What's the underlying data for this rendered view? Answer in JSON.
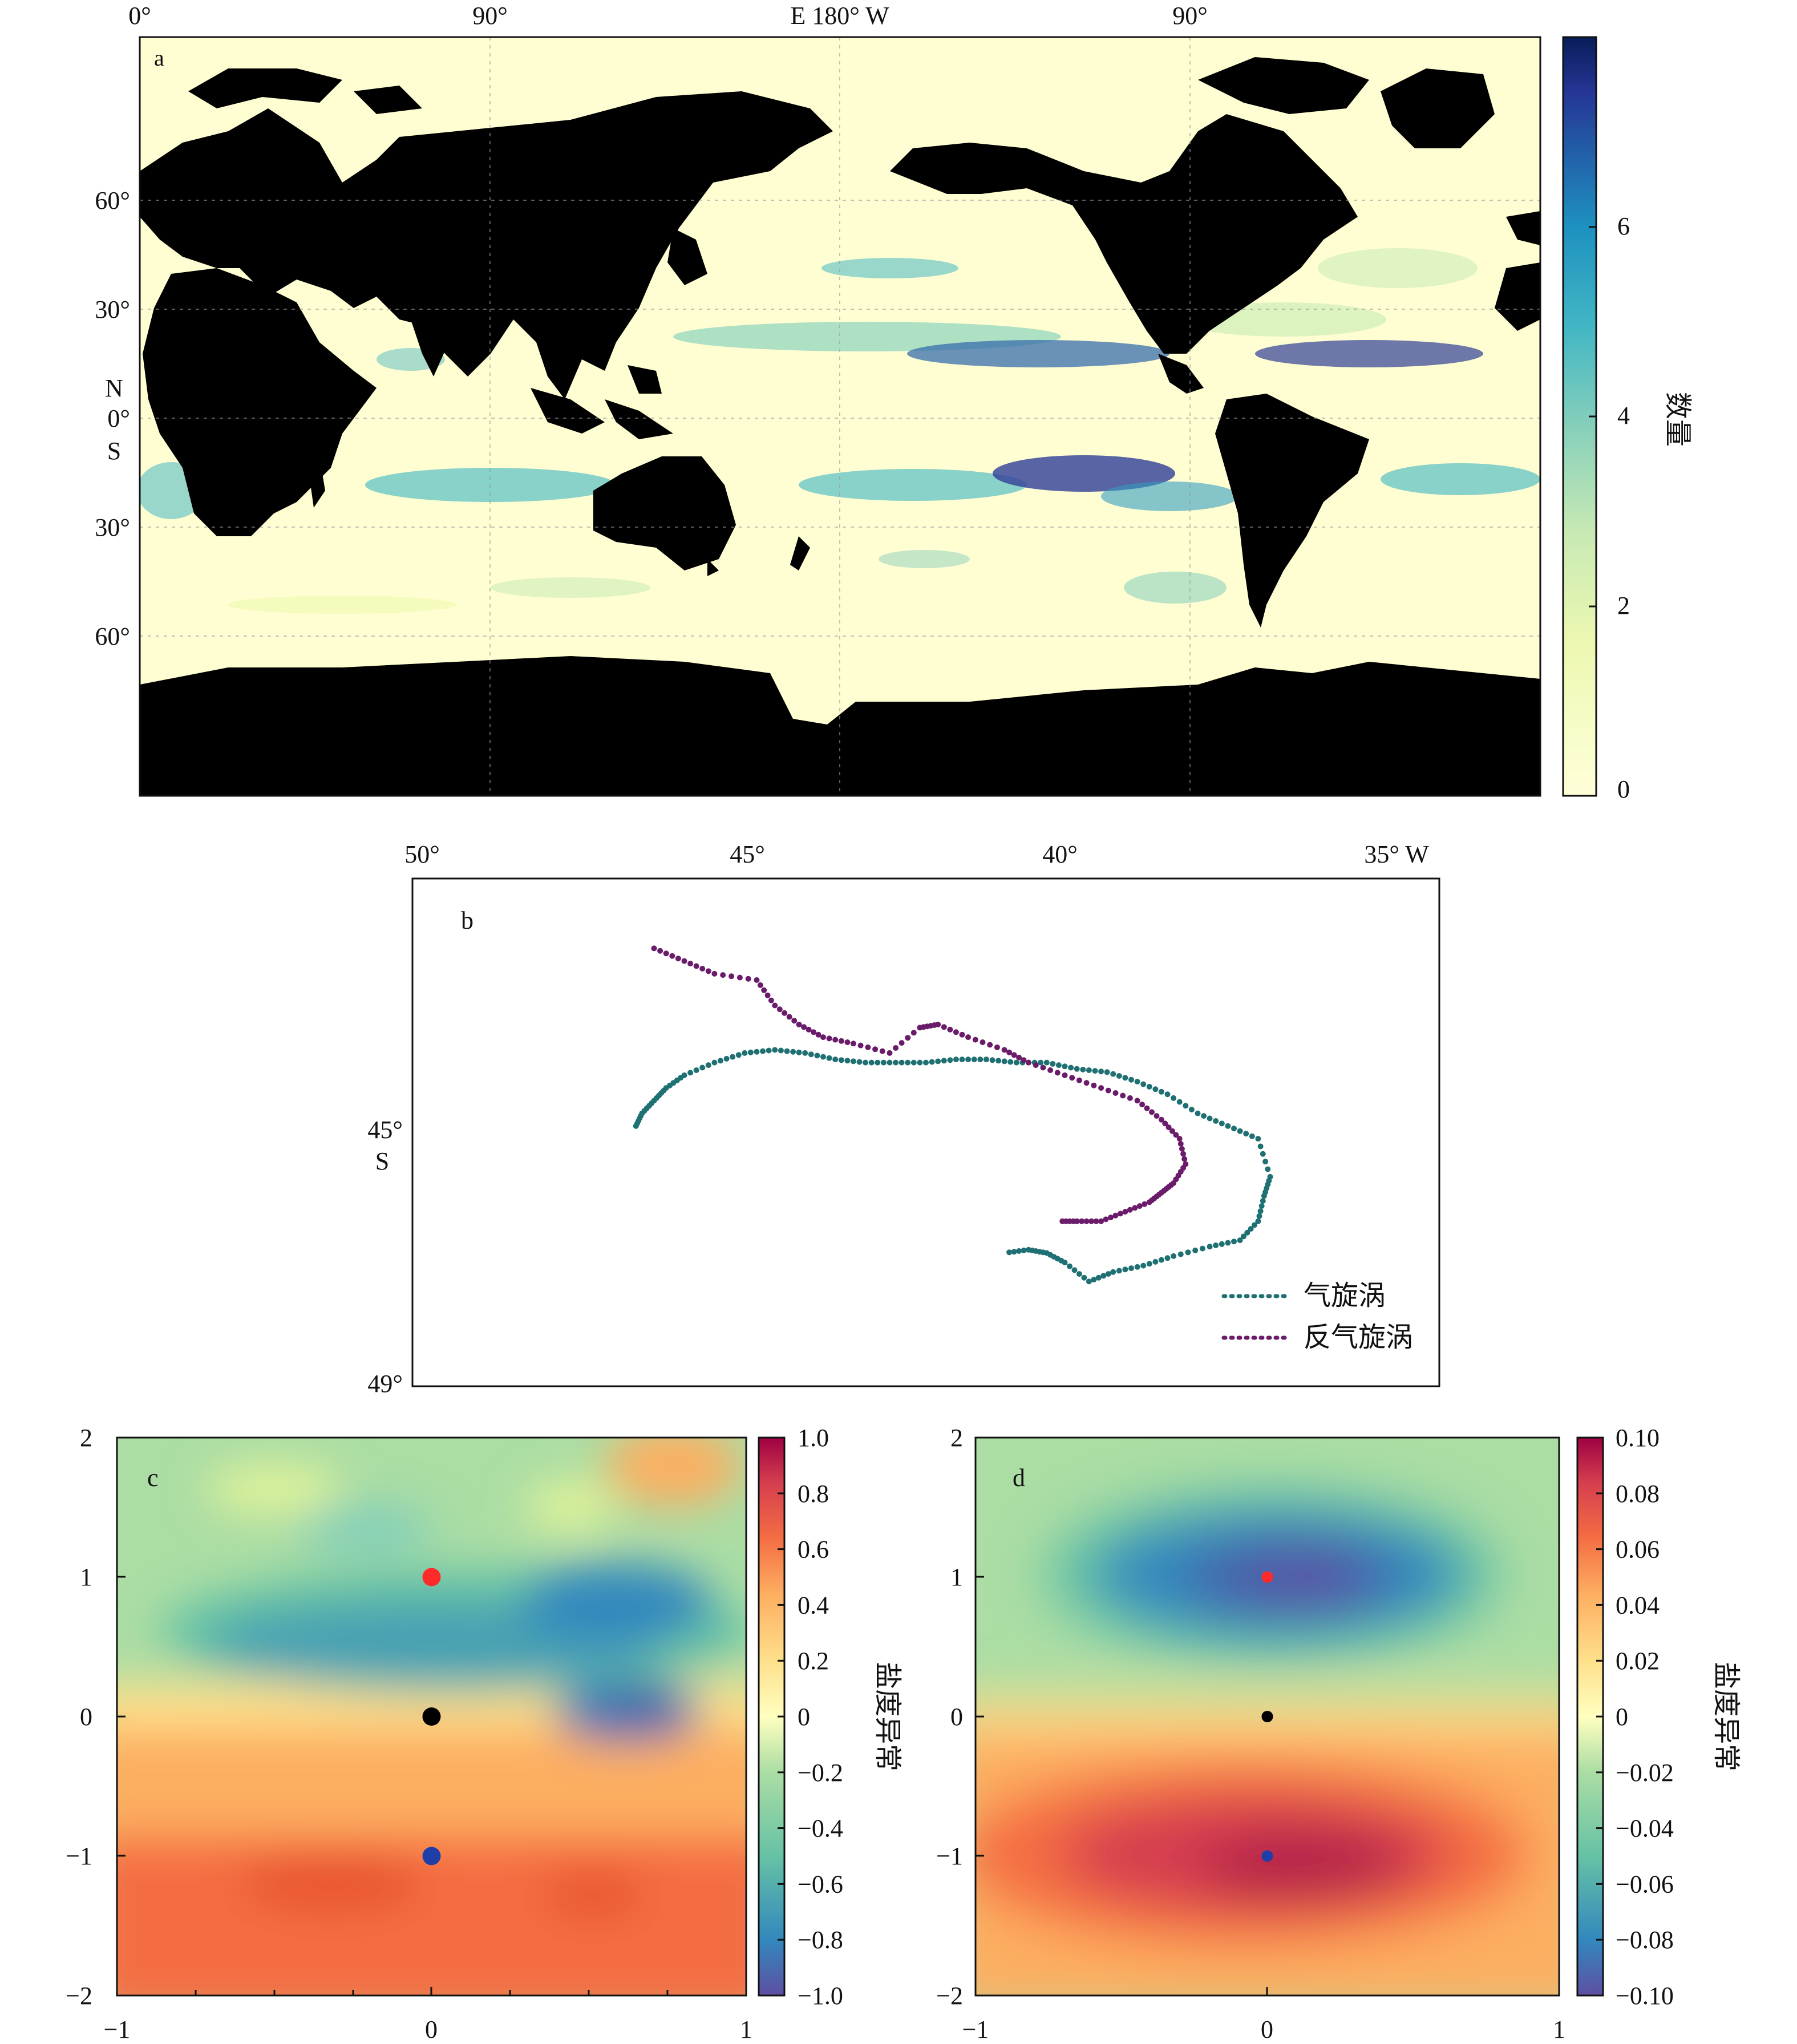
{
  "panel_a": {
    "label": "a",
    "top_ticks": [
      "0°",
      "90°",
      "E 180° W",
      "90°"
    ],
    "left_ticks": [
      "60°",
      "30°",
      "N",
      "0°",
      "S",
      "30°",
      "60°"
    ],
    "colorbar": {
      "label": "数量",
      "ticks": [
        "0",
        "2",
        "4",
        "6"
      ],
      "range": [
        0,
        8
      ]
    },
    "colors": {
      "ocean": "#fffed2",
      "land": "#000000"
    },
    "map_data": {
      "type": "heatmap",
      "description_values": "eddy count per grid cell, 0–8"
    }
  },
  "panel_b": {
    "label": "b",
    "top_ticks": [
      "50°",
      "45°",
      "40°",
      "35° W"
    ],
    "left_ticks": [
      "45°",
      "S",
      "49°"
    ],
    "legend": {
      "cyclone": "气旋涡",
      "anticyclone": "反气旋涡"
    },
    "colors": {
      "cyclone": "#1f7072",
      "anticyclone": "#6a1b6a"
    },
    "chart_data": {
      "type": "scatter",
      "xlim": [
        -51,
        -34
      ],
      "ylim": [
        -49,
        -41
      ],
      "series": [
        {
          "name": "气旋涡",
          "lon": [
            -47.3,
            -47.2,
            -47.0,
            -46.8,
            -46.5,
            -46.0,
            -45.5,
            -45.0,
            -44.5,
            -44.0,
            -43.5,
            -43.0,
            -42.5,
            -42.0,
            -41.5,
            -41.0,
            -40.5,
            -40.0,
            -39.5,
            -39.0,
            -38.5,
            -38.0,
            -37.5,
            -37.0,
            -36.8,
            -36.9,
            -37.0,
            -37.3,
            -37.8,
            -38.4,
            -38.9,
            -39.4,
            -39.8,
            -40.2,
            -40.5,
            -40.8,
            -41.2
          ],
          "lat": [
            -44.9,
            -44.7,
            -44.5,
            -44.3,
            -44.1,
            -43.9,
            -43.75,
            -43.7,
            -43.75,
            -43.85,
            -43.9,
            -43.9,
            -43.9,
            -43.85,
            -43.85,
            -43.9,
            -43.9,
            -44.0,
            -44.05,
            -44.2,
            -44.4,
            -44.7,
            -44.9,
            -45.1,
            -45.7,
            -46.0,
            -46.4,
            -46.7,
            -46.8,
            -46.95,
            -47.1,
            -47.2,
            -47.35,
            -47.05,
            -46.9,
            -46.85,
            -46.9
          ]
        },
        {
          "name": "反气旋涡",
          "lon": [
            -47.0,
            -46.5,
            -46.0,
            -45.3,
            -45.0,
            -44.6,
            -44.2,
            -43.7,
            -43.1,
            -42.6,
            -42.3,
            -41.8,
            -41.2,
            -40.8,
            -40.2,
            -39.6,
            -39.0,
            -38.6,
            -38.3,
            -38.2,
            -38.4,
            -38.6,
            -38.8,
            -39.2,
            -39.6,
            -40.0,
            -40.3
          ],
          "lat": [
            -42.1,
            -42.3,
            -42.5,
            -42.6,
            -43.0,
            -43.3,
            -43.5,
            -43.6,
            -43.75,
            -43.35,
            -43.3,
            -43.5,
            -43.7,
            -43.9,
            -44.1,
            -44.3,
            -44.5,
            -44.8,
            -45.1,
            -45.5,
            -45.8,
            -45.95,
            -46.1,
            -46.25,
            -46.4,
            -46.4,
            -46.4
          ]
        }
      ]
    }
  },
  "panel_c": {
    "label": "c",
    "x_ticks": [
      "−1",
      "0",
      "1"
    ],
    "y_ticks": [
      "2",
      "1",
      "0",
      "−1",
      "−2"
    ],
    "colorbar": {
      "label": "盐度异常",
      "ticks": [
        "1.0",
        "0.8",
        "0.6",
        "0.4",
        "0.2",
        "0",
        "−0.2",
        "−0.4",
        "−0.6",
        "−0.8",
        "−1.0"
      ],
      "range": [
        -1.0,
        1.0
      ]
    },
    "chart_data": {
      "type": "heatmap",
      "xlim": [
        -1,
        1
      ],
      "ylim": [
        -2,
        2
      ],
      "markers": [
        {
          "x": 0,
          "y": 1,
          "color": "#ff2a2a"
        },
        {
          "x": 0,
          "y": 0,
          "color": "#000000"
        },
        {
          "x": 0,
          "y": -1,
          "color": "#1f3fa8"
        }
      ]
    }
  },
  "panel_d": {
    "label": "d",
    "x_ticks": [
      "−1",
      "0",
      "1"
    ],
    "y_ticks": [
      "2",
      "1",
      "0",
      "−1",
      "−2"
    ],
    "colorbar": {
      "label": "盐度异常",
      "ticks": [
        "0.10",
        "0.08",
        "0.06",
        "0.04",
        "0.02",
        "0",
        "−0.02",
        "−0.04",
        "−0.06",
        "−0.08",
        "−0.10"
      ],
      "range": [
        -0.1,
        0.1
      ]
    },
    "chart_data": {
      "type": "heatmap",
      "xlim": [
        -1,
        1
      ],
      "ylim": [
        -2,
        2
      ],
      "markers": [
        {
          "x": 0,
          "y": 1,
          "color": "#ff2a2a"
        },
        {
          "x": 0,
          "y": 0,
          "color": "#000000"
        },
        {
          "x": 0,
          "y": -1,
          "color": "#1f3fa8"
        }
      ]
    }
  }
}
